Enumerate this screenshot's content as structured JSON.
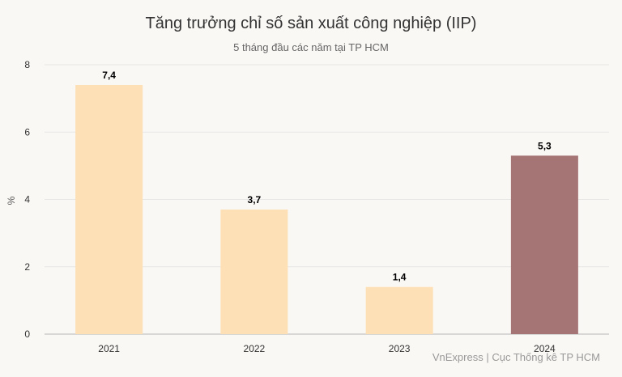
{
  "chart_data": {
    "type": "bar",
    "title": "Tăng trưởng chỉ số sản xuất công nghiệp (IIP)",
    "subtitle": "5 tháng đầu các năm tại TP HCM",
    "ylabel": "%",
    "xlabel": "",
    "categories": [
      "2021",
      "2022",
      "2023",
      "2024"
    ],
    "values": [
      7.4,
      3.7,
      1.4,
      5.3
    ],
    "value_labels": [
      "7,4",
      "3,7",
      "1,4",
      "5,3"
    ],
    "ylim": [
      0,
      8
    ],
    "yticks": [
      0,
      2,
      4,
      6,
      8
    ],
    "grid": true,
    "legend": "none",
    "colors": {
      "default_bar": "#fde0b5",
      "highlight_bar": "#a57474",
      "grid": "#e6e6e6",
      "axis": "#cccccc"
    },
    "highlight_index": 3,
    "source": "VnExpress | Cục Thống kê TP HCM"
  }
}
